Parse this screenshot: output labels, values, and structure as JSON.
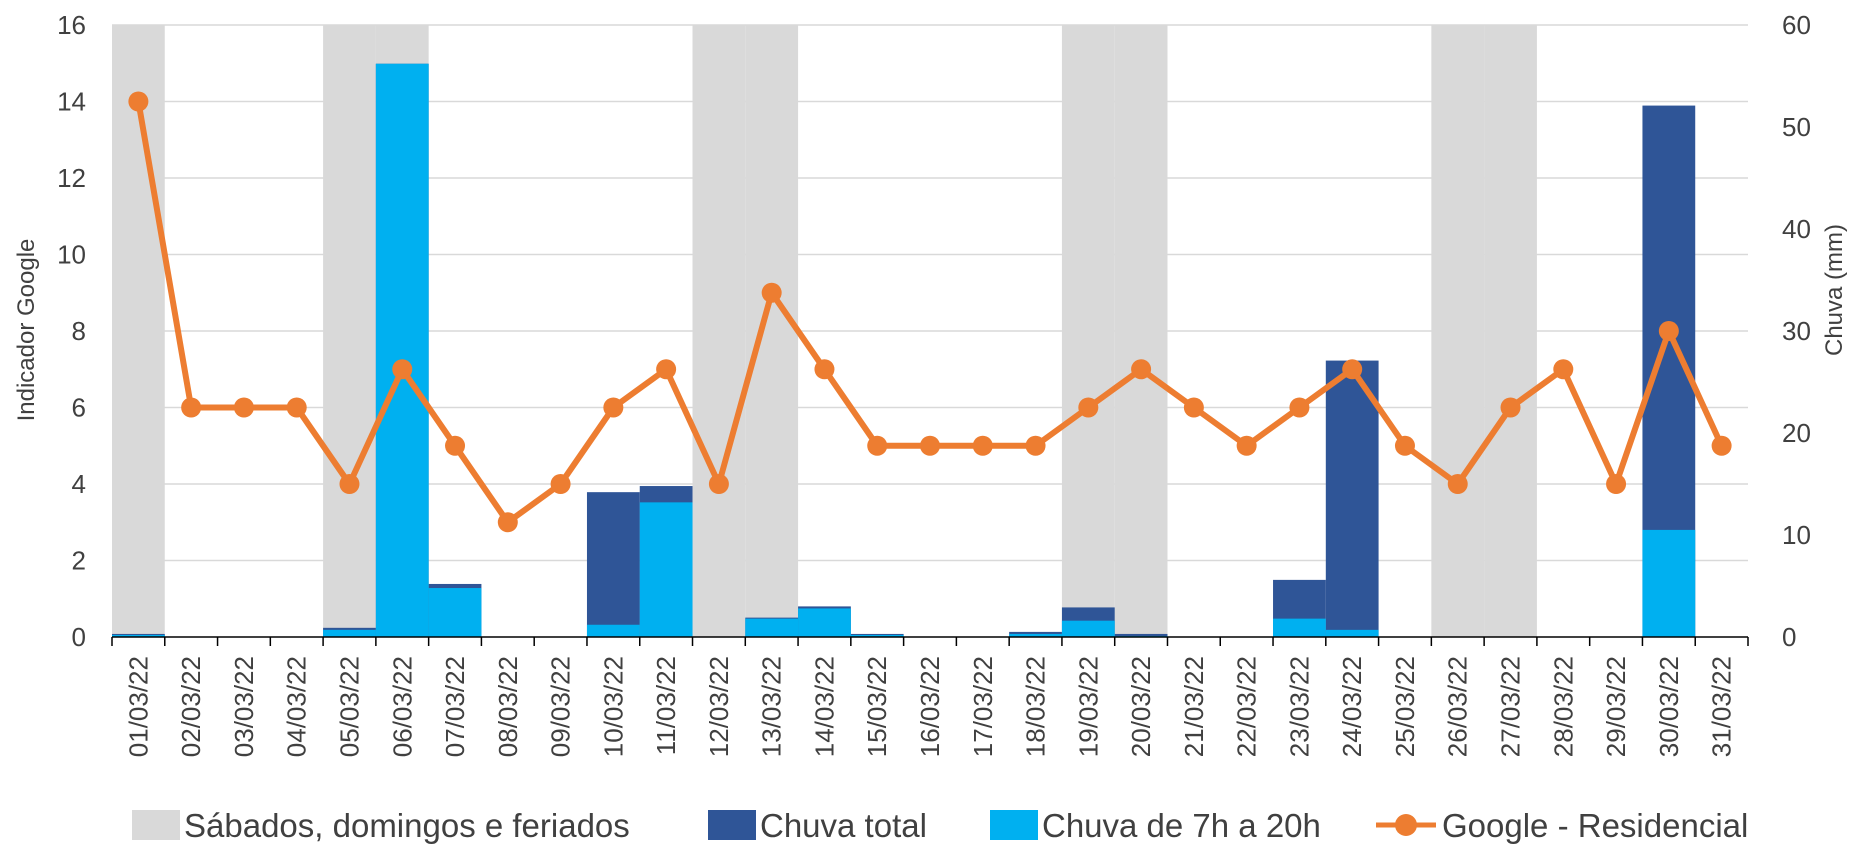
{
  "chart_data": {
    "type": "bar",
    "categories": [
      "01/03/22",
      "02/03/22",
      "03/03/22",
      "04/03/22",
      "05/03/22",
      "06/03/22",
      "07/03/22",
      "08/03/22",
      "09/03/22",
      "10/03/22",
      "11/03/22",
      "12/03/22",
      "13/03/22",
      "14/03/22",
      "15/03/22",
      "16/03/22",
      "17/03/22",
      "18/03/22",
      "19/03/22",
      "20/03/22",
      "21/03/22",
      "22/03/22",
      "23/03/22",
      "24/03/22",
      "25/03/22",
      "26/03/22",
      "27/03/22",
      "28/03/22",
      "29/03/22",
      "30/03/22",
      "31/03/22"
    ],
    "ylabel_left": "Indicador Google",
    "ylabel_right": "Chuva (mm)",
    "ylim_left": [
      0,
      16
    ],
    "ylim_right": [
      0,
      60
    ],
    "yticks_left": [
      0,
      2,
      4,
      6,
      8,
      10,
      12,
      14,
      16
    ],
    "yticks_right": [
      0,
      10,
      20,
      30,
      40,
      50,
      60
    ],
    "grid": true,
    "legend_position": "bottom",
    "series": [
      {
        "name": "Sábados, domingos e feriados",
        "type": "bar",
        "axis": "left",
        "color": "#d9d9d9",
        "values": [
          16,
          0,
          0,
          0,
          16,
          16,
          0,
          0,
          0,
          0,
          0,
          16,
          16,
          0,
          0,
          0,
          0,
          0,
          16,
          16,
          0,
          0,
          0,
          0,
          0,
          16,
          16,
          0,
          0,
          0,
          0
        ]
      },
      {
        "name": "Chuva total",
        "type": "bar",
        "axis": "right",
        "color": "#2f5597",
        "values": [
          0.3,
          0,
          0,
          0,
          0.9,
          56.2,
          5.2,
          0,
          0,
          14.2,
          14.8,
          0,
          1.9,
          3.0,
          0.3,
          0,
          0,
          0.5,
          2.9,
          0.3,
          0,
          0,
          5.6,
          27.1,
          0,
          0,
          0,
          0,
          0,
          52.1,
          0
        ]
      },
      {
        "name": "Chuva de 7h a 20h",
        "type": "bar",
        "axis": "right",
        "color": "#00b0f0",
        "values": [
          0.2,
          0,
          0,
          0,
          0.7,
          56.2,
          4.8,
          0,
          0,
          1.2,
          13.2,
          0,
          1.8,
          2.8,
          0.2,
          0,
          0,
          0.3,
          1.6,
          0.1,
          0,
          0,
          1.8,
          0.7,
          0,
          0,
          0,
          0,
          0,
          10.5,
          0
        ]
      },
      {
        "name": "Google - Residencial",
        "type": "line",
        "axis": "left",
        "color": "#ed7d31",
        "values": [
          14,
          6,
          6,
          6,
          4,
          7,
          5,
          3,
          4,
          6,
          7,
          4,
          9,
          7,
          5,
          5,
          5,
          5,
          6,
          7,
          6,
          5,
          6,
          7,
          5,
          4,
          6,
          7,
          4,
          8,
          5
        ]
      }
    ]
  }
}
